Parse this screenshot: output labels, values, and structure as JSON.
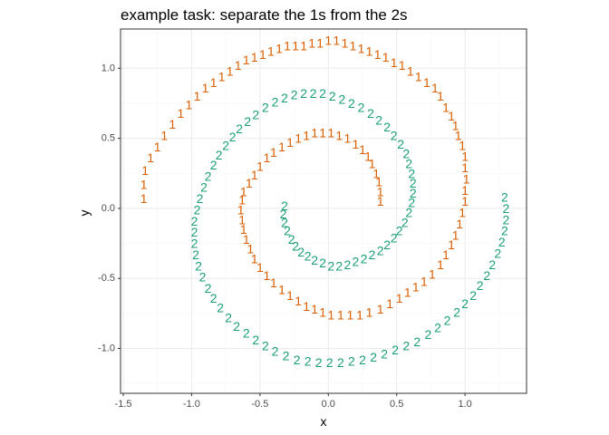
{
  "chart_data": {
    "type": "scatter",
    "title": "example task: separate the 1s from the 2s",
    "xlabel": "x",
    "ylabel": "y",
    "xlim": [
      -1.52,
      1.45
    ],
    "ylim": [
      -1.32,
      1.28
    ],
    "xticks": [
      -1.5,
      -1.0,
      -0.5,
      0.0,
      0.5,
      1.0
    ],
    "xtick_labels": [
      "-1.5",
      "-1.0",
      "-0.5",
      "0.0",
      "0.5",
      "1.0"
    ],
    "yticks": [
      -1.0,
      -0.5,
      0.0,
      0.5,
      1.0
    ],
    "ytick_labels": [
      "-1.0",
      "-0.5",
      "0.0",
      "0.5",
      "1.0"
    ],
    "grid": true,
    "colors": {
      "class_1": "#d95f02",
      "class_2": "#1b9e77",
      "panel_border": "#333333",
      "grid_major": "#ebebeb",
      "grid_minor": "#f5f5f5"
    },
    "series": [
      {
        "name": "1",
        "points": [
          [
            -1.35,
            0.07
          ],
          [
            -1.35,
            0.17
          ],
          [
            -1.34,
            0.27
          ],
          [
            -1.3,
            0.36
          ],
          [
            -1.25,
            0.44
          ],
          [
            -1.2,
            0.52
          ],
          [
            -1.14,
            0.6
          ],
          [
            -1.08,
            0.68
          ],
          [
            -1.02,
            0.74
          ],
          [
            -0.96,
            0.8
          ],
          [
            -0.9,
            0.86
          ],
          [
            -0.84,
            0.9
          ],
          [
            -0.78,
            0.94
          ],
          [
            -0.72,
            0.98
          ],
          [
            -0.66,
            1.02
          ],
          [
            -0.6,
            1.06
          ],
          [
            -0.54,
            1.08
          ],
          [
            -0.48,
            1.1
          ],
          [
            -0.42,
            1.12
          ],
          [
            -0.36,
            1.14
          ],
          [
            -0.3,
            1.16
          ],
          [
            -0.24,
            1.16
          ],
          [
            -0.18,
            1.16
          ],
          [
            -0.12,
            1.18
          ],
          [
            -0.06,
            1.18
          ],
          [
            0.0,
            1.2
          ],
          [
            0.06,
            1.2
          ],
          [
            0.12,
            1.18
          ],
          [
            0.18,
            1.16
          ],
          [
            0.24,
            1.14
          ],
          [
            0.3,
            1.12
          ],
          [
            0.36,
            1.1
          ],
          [
            0.42,
            1.08
          ],
          [
            0.48,
            1.04
          ],
          [
            0.54,
            1.02
          ],
          [
            0.6,
            0.98
          ],
          [
            0.66,
            0.94
          ],
          [
            0.72,
            0.9
          ],
          [
            0.78,
            0.86
          ],
          [
            0.82,
            0.8
          ],
          [
            0.86,
            0.72
          ],
          [
            0.9,
            0.66
          ],
          [
            0.93,
            0.59
          ],
          [
            0.95,
            0.52
          ],
          [
            0.98,
            0.45
          ],
          [
            1.0,
            0.37
          ],
          [
            1.0,
            0.29
          ],
          [
            1.01,
            0.21
          ],
          [
            1.0,
            0.13
          ],
          [
            1.0,
            0.05
          ],
          [
            0.98,
            -0.03
          ],
          [
            0.96,
            -0.11
          ],
          [
            0.93,
            -0.19
          ],
          [
            0.9,
            -0.26
          ],
          [
            0.86,
            -0.33
          ],
          [
            0.82,
            -0.4
          ],
          [
            0.76,
            -0.47
          ],
          [
            0.7,
            -0.52
          ],
          [
            0.64,
            -0.56
          ],
          [
            0.58,
            -0.6
          ],
          [
            0.52,
            -0.64
          ],
          [
            0.45,
            -0.68
          ],
          [
            0.38,
            -0.72
          ],
          [
            0.3,
            -0.74
          ],
          [
            0.23,
            -0.76
          ],
          [
            0.16,
            -0.76
          ],
          [
            0.09,
            -0.76
          ],
          [
            0.02,
            -0.76
          ],
          [
            -0.04,
            -0.74
          ],
          [
            -0.1,
            -0.72
          ],
          [
            -0.16,
            -0.7
          ],
          [
            -0.22,
            -0.66
          ],
          [
            -0.28,
            -0.62
          ],
          [
            -0.34,
            -0.58
          ],
          [
            -0.4,
            -0.53
          ],
          [
            -0.45,
            -0.48
          ],
          [
            -0.5,
            -0.42
          ],
          [
            -0.54,
            -0.36
          ],
          [
            -0.57,
            -0.29
          ],
          [
            -0.6,
            -0.22
          ],
          [
            -0.62,
            -0.15
          ],
          [
            -0.63,
            -0.08
          ],
          [
            -0.64,
            -0.01
          ],
          [
            -0.63,
            0.06
          ],
          [
            -0.62,
            0.12
          ],
          [
            -0.58,
            0.18
          ],
          [
            -0.54,
            0.24
          ],
          [
            -0.5,
            0.3
          ],
          [
            -0.45,
            0.36
          ],
          [
            -0.4,
            0.4
          ],
          [
            -0.34,
            0.44
          ],
          [
            -0.28,
            0.47
          ],
          [
            -0.22,
            0.5
          ],
          [
            -0.16,
            0.52
          ],
          [
            -0.1,
            0.54
          ],
          [
            -0.04,
            0.54
          ],
          [
            0.02,
            0.54
          ],
          [
            0.08,
            0.52
          ],
          [
            0.14,
            0.5
          ],
          [
            0.2,
            0.46
          ],
          [
            0.25,
            0.42
          ],
          [
            0.29,
            0.37
          ],
          [
            0.32,
            0.32
          ],
          [
            0.35,
            0.25
          ],
          [
            0.37,
            0.19
          ],
          [
            0.38,
            0.12
          ],
          [
            0.38,
            0.05
          ]
        ]
      },
      {
        "name": "2",
        "points": [
          [
            -0.32,
            0.02
          ],
          [
            -0.33,
            -0.04
          ],
          [
            -0.32,
            -0.1
          ],
          [
            -0.3,
            -0.16
          ],
          [
            -0.27,
            -0.22
          ],
          [
            -0.24,
            -0.27
          ],
          [
            -0.2,
            -0.31
          ],
          [
            -0.15,
            -0.34
          ],
          [
            -0.1,
            -0.37
          ],
          [
            -0.04,
            -0.39
          ],
          [
            0.02,
            -0.41
          ],
          [
            0.08,
            -0.41
          ],
          [
            0.14,
            -0.4
          ],
          [
            0.2,
            -0.38
          ],
          [
            0.26,
            -0.36
          ],
          [
            0.32,
            -0.33
          ],
          [
            0.38,
            -0.3
          ],
          [
            0.43,
            -0.26
          ],
          [
            0.48,
            -0.21
          ],
          [
            0.52,
            -0.16
          ],
          [
            0.56,
            -0.1
          ],
          [
            0.59,
            -0.03
          ],
          [
            0.61,
            0.04
          ],
          [
            0.62,
            0.11
          ],
          [
            0.62,
            0.18
          ],
          [
            0.61,
            0.25
          ],
          [
            0.59,
            0.32
          ],
          [
            0.57,
            0.39
          ],
          [
            0.53,
            0.46
          ],
          [
            0.48,
            0.52
          ],
          [
            0.43,
            0.58
          ],
          [
            0.37,
            0.63
          ],
          [
            0.31,
            0.68
          ],
          [
            0.24,
            0.72
          ],
          [
            0.17,
            0.75
          ],
          [
            0.1,
            0.78
          ],
          [
            0.03,
            0.8
          ],
          [
            -0.04,
            0.82
          ],
          [
            -0.11,
            0.82
          ],
          [
            -0.18,
            0.82
          ],
          [
            -0.25,
            0.81
          ],
          [
            -0.32,
            0.79
          ],
          [
            -0.39,
            0.76
          ],
          [
            -0.46,
            0.72
          ],
          [
            -0.53,
            0.67
          ],
          [
            -0.59,
            0.62
          ],
          [
            -0.65,
            0.57
          ],
          [
            -0.7,
            0.51
          ],
          [
            -0.75,
            0.45
          ],
          [
            -0.8,
            0.38
          ],
          [
            -0.84,
            0.31
          ],
          [
            -0.88,
            0.23
          ],
          [
            -0.91,
            0.15
          ],
          [
            -0.94,
            0.07
          ],
          [
            -0.96,
            -0.01
          ],
          [
            -0.98,
            -0.09
          ],
          [
            -0.98,
            -0.17
          ],
          [
            -0.98,
            -0.25
          ],
          [
            -0.97,
            -0.33
          ],
          [
            -0.95,
            -0.41
          ],
          [
            -0.92,
            -0.49
          ],
          [
            -0.88,
            -0.57
          ],
          [
            -0.84,
            -0.64
          ],
          [
            -0.79,
            -0.71
          ],
          [
            -0.73,
            -0.78
          ],
          [
            -0.67,
            -0.84
          ],
          [
            -0.6,
            -0.89
          ],
          [
            -0.53,
            -0.94
          ],
          [
            -0.46,
            -0.98
          ],
          [
            -0.39,
            -1.02
          ],
          [
            -0.31,
            -1.05
          ],
          [
            -0.23,
            -1.08
          ],
          [
            -0.15,
            -1.09
          ],
          [
            -0.07,
            -1.1
          ],
          [
            0.01,
            -1.1
          ],
          [
            0.09,
            -1.1
          ],
          [
            0.17,
            -1.09
          ],
          [
            0.25,
            -1.08
          ],
          [
            0.33,
            -1.06
          ],
          [
            0.41,
            -1.04
          ],
          [
            0.49,
            -1.01
          ],
          [
            0.57,
            -0.98
          ],
          [
            0.65,
            -0.95
          ],
          [
            0.73,
            -0.9
          ],
          [
            0.8,
            -0.85
          ],
          [
            0.87,
            -0.8
          ],
          [
            0.94,
            -0.74
          ],
          [
            1.0,
            -0.68
          ],
          [
            1.06,
            -0.62
          ],
          [
            1.11,
            -0.55
          ],
          [
            1.16,
            -0.48
          ],
          [
            1.2,
            -0.4
          ],
          [
            1.24,
            -0.32
          ],
          [
            1.27,
            -0.24
          ],
          [
            1.29,
            -0.16
          ],
          [
            1.3,
            -0.08
          ],
          [
            1.3,
            0.0
          ],
          [
            1.29,
            0.08
          ]
        ]
      }
    ]
  }
}
